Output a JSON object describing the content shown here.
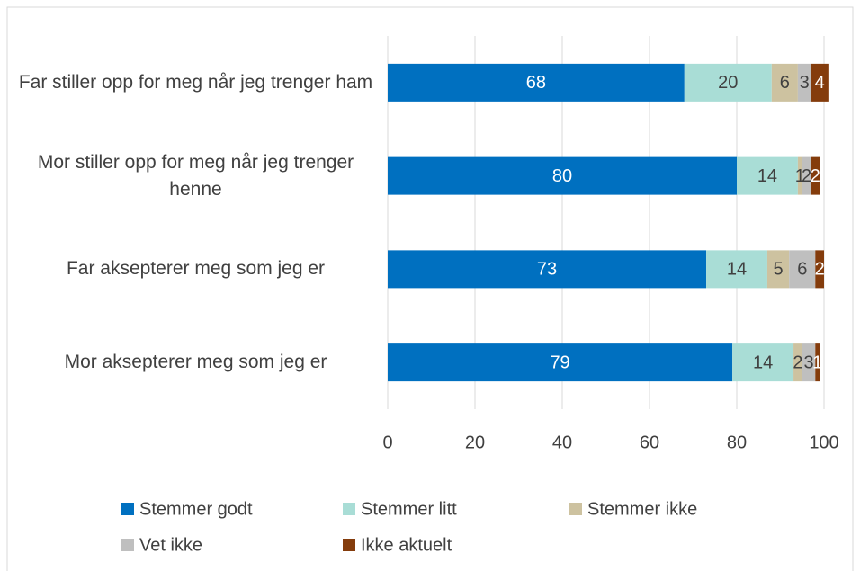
{
  "chart_data": {
    "type": "bar",
    "orientation": "horizontal",
    "stacked": true,
    "categories": [
      "Far stiller opp for meg når jeg trenger ham",
      "Mor stiller opp for meg når jeg trenger henne",
      "Far aksepterer meg som jeg er",
      "Mor aksepterer meg som jeg er"
    ],
    "series": [
      {
        "name": "Stemmer godt",
        "color": "#0070c0",
        "values": [
          68,
          80,
          73,
          79
        ]
      },
      {
        "name": "Stemmer litt",
        "color": "#a9ddd6",
        "values": [
          20,
          14,
          14,
          14
        ]
      },
      {
        "name": "Stemmer ikke",
        "color": "#cdc2a0",
        "values": [
          6,
          1,
          5,
          2
        ]
      },
      {
        "name": "Vet ikke",
        "color": "#bfbfbf",
        "values": [
          3,
          2,
          6,
          3
        ]
      },
      {
        "name": "Ikke aktuelt",
        "color": "#843c0c",
        "values": [
          4,
          2,
          2,
          1
        ]
      }
    ],
    "xlim": [
      0,
      100
    ],
    "xticks": [
      0,
      20,
      40,
      60,
      80,
      100
    ],
    "grid": true
  }
}
